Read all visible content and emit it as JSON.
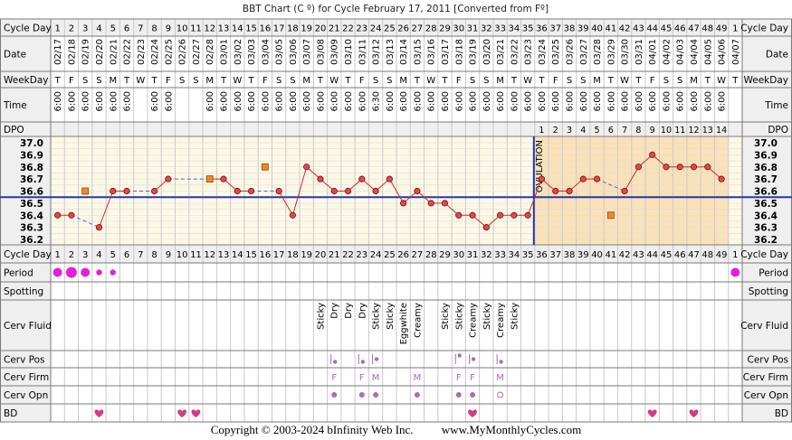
{
  "title": "BBT Chart (C º) for Cycle February 17, 2011  [Converted from Fº]",
  "labels": {
    "cycle_day": "Cycle Day",
    "date": "Date",
    "weekday": "WeekDay",
    "time": "Time",
    "dpo": "DPO",
    "period": "Period",
    "spotting": "Spotting",
    "cerv_fluid": "Cerv Fluid",
    "cerv_pos": "Cerv Pos",
    "cerv_firm": "Cerv Firm",
    "cerv_opn": "Cerv Opn",
    "bd": "BD"
  },
  "ovulation_label": "OVULATION",
  "cycle_days": [
    "1",
    "2",
    "3",
    "4",
    "5",
    "6",
    "7",
    "8",
    "9",
    "10",
    "11",
    "12",
    "13",
    "14",
    "15",
    "16",
    "17",
    "18",
    "19",
    "20",
    "21",
    "22",
    "23",
    "24",
    "25",
    "26",
    "27",
    "28",
    "29",
    "30",
    "31",
    "32",
    "33",
    "34",
    "35",
    "36",
    "37",
    "38",
    "39",
    "40",
    "41",
    "42",
    "43",
    "44",
    "45",
    "46",
    "47",
    "48",
    "49",
    "1"
  ],
  "dates": [
    "02/17",
    "02/18",
    "02/19",
    "02/20",
    "02/21",
    "02/22",
    "02/23",
    "02/24",
    "02/25",
    "02/26",
    "02/27",
    "02/28",
    "03/01",
    "03/02",
    "03/03",
    "03/04",
    "03/05",
    "03/06",
    "03/07",
    "03/08",
    "03/09",
    "03/10",
    "03/11",
    "03/12",
    "03/13",
    "03/14",
    "03/15",
    "03/16",
    "03/17",
    "03/18",
    "03/19",
    "03/20",
    "03/21",
    "03/22",
    "03/23",
    "03/24",
    "03/25",
    "03/26",
    "03/27",
    "03/28",
    "03/29",
    "03/30",
    "03/31",
    "04/01",
    "04/02",
    "04/03",
    "04/04",
    "04/05",
    "04/06",
    "04/07"
  ],
  "weekdays": [
    "T",
    "F",
    "S",
    "S",
    "M",
    "T",
    "W",
    "T",
    "F",
    "S",
    "S",
    "M",
    "T",
    "W",
    "T",
    "F",
    "S",
    "S",
    "M",
    "T",
    "W",
    "T",
    "F",
    "S",
    "S",
    "M",
    "T",
    "W",
    "T",
    "F",
    "S",
    "S",
    "M",
    "T",
    "W",
    "T",
    "F",
    "S",
    "S",
    "M",
    "T",
    "W",
    "T",
    "F",
    "S",
    "S",
    "M",
    "T",
    "W",
    "T"
  ],
  "times": [
    "6:00",
    "6:00",
    "6:00",
    "6:00",
    "6:00",
    "6:00",
    "",
    "6:00",
    "6:00",
    "",
    "",
    "6:00",
    "6:00",
    "6:00",
    "6:00",
    "6:00",
    "6:00",
    "6:00",
    "6:00",
    "6:00",
    "6:00",
    "6:00",
    "6:00",
    "6:30",
    "6:00",
    "6:00",
    "6:00",
    "6:00",
    "6:00",
    "6:00",
    "6:00",
    "6:00",
    "6:00",
    "6:00",
    "6:00",
    "6:00",
    "6:00",
    "6:00",
    "6:00",
    "6:00",
    "6:00",
    "6:00",
    "6:00",
    "6:00",
    "6:00",
    "6:00",
    "6:00",
    "6:00",
    "6:00",
    ""
  ],
  "dpo": [
    "",
    "",
    "",
    "",
    "",
    "",
    "",
    "",
    "",
    "",
    "",
    "",
    "",
    "",
    "",
    "",
    "",
    "",
    "",
    "",
    "",
    "",
    "",
    "",
    "",
    "",
    "",
    "",
    "",
    "",
    "",
    "",
    "",
    "",
    "",
    "1",
    "2",
    "3",
    "4",
    "5",
    "6",
    "7",
    "8",
    "9",
    "10",
    "11",
    "12",
    "13",
    "14",
    ""
  ],
  "temp_ticks": [
    "37.0",
    "36.9",
    "36.8",
    "36.7",
    "36.6",
    "36.5",
    "36.4",
    "36.3",
    "36.2"
  ],
  "chart_data": {
    "type": "line",
    "ylim": [
      36.2,
      37.0
    ],
    "coverline": 36.55,
    "ovulation_day": 35,
    "temps": [
      36.4,
      36.4,
      null,
      36.3,
      36.6,
      36.6,
      null,
      36.6,
      36.7,
      null,
      null,
      36.7,
      36.7,
      36.6,
      36.6,
      null,
      36.6,
      36.4,
      36.8,
      36.7,
      36.6,
      36.6,
      36.7,
      36.6,
      36.7,
      36.5,
      36.6,
      36.5,
      36.5,
      36.4,
      36.4,
      36.3,
      36.4,
      36.4,
      36.4,
      36.7,
      36.6,
      36.6,
      36.7,
      36.7,
      null,
      36.6,
      36.8,
      36.9,
      36.8,
      36.8,
      36.8,
      36.8,
      36.7,
      null
    ],
    "discarded": [
      {
        "day": 3,
        "temp": 36.6
      },
      {
        "day": 12,
        "temp": 36.7
      },
      {
        "day": 16,
        "temp": 36.8
      },
      {
        "day": 41,
        "temp": 36.4
      }
    ]
  },
  "period": [
    3,
    4,
    3,
    2,
    2,
    0,
    0,
    0,
    0,
    0,
    0,
    0,
    0,
    0,
    0,
    0,
    0,
    0,
    0,
    0,
    0,
    0,
    0,
    0,
    0,
    0,
    0,
    0,
    0,
    0,
    0,
    0,
    0,
    0,
    0,
    0,
    0,
    0,
    0,
    0,
    0,
    0,
    0,
    0,
    0,
    0,
    0,
    0,
    0,
    3
  ],
  "cerv_fluid": [
    "",
    "",
    "",
    "",
    "",
    "",
    "",
    "",
    "",
    "",
    "",
    "",
    "",
    "",
    "",
    "",
    "",
    "",
    "",
    "Sticky",
    "Dry",
    "Dry",
    "Dry",
    "Sticky",
    "Sticky",
    "Eggwhite",
    "Creamy",
    "",
    "Sticky",
    "Sticky",
    "Creamy",
    "Sticky",
    "Creamy",
    "Sticky",
    "",
    "",
    "",
    "",
    "",
    "",
    "",
    "",
    "",
    "",
    "",
    "",
    "",
    "",
    "",
    ""
  ],
  "cerv_pos": {
    "21": "low",
    "23": "low",
    "24": "mid",
    "30": "high",
    "31": "mid",
    "33": "low"
  },
  "cerv_firm": {
    "21": "F",
    "23": "F",
    "24": "M",
    "27": "M",
    "30": "F",
    "31": "F",
    "33": "M"
  },
  "cerv_opn": {
    "21": "closed",
    "23": "closed",
    "24": "closed",
    "27": "closed",
    "30": "closed",
    "31": "closed",
    "33": "open"
  },
  "bd_days": [
    4,
    10,
    11,
    31,
    44,
    47
  ],
  "colors": {
    "border": "#7a7a7a",
    "grid": "#c9c9c9",
    "label_bg": "#efefef",
    "chart_bg": "#fdf8e6",
    "post_ov_bg": "#fbe1b8",
    "line": "#cc2a2a",
    "dot": "#e04848",
    "discarded": "#f0882a",
    "coverline": "#1f38b0",
    "period": "#e020e0",
    "heart": "#d43a8a",
    "cervix": "#b06ab0"
  },
  "footer": {
    "copyright": "Copyright © 2003-2024 bInfinity Web Inc.",
    "site": "www.MyMonthlyCycles.com"
  }
}
